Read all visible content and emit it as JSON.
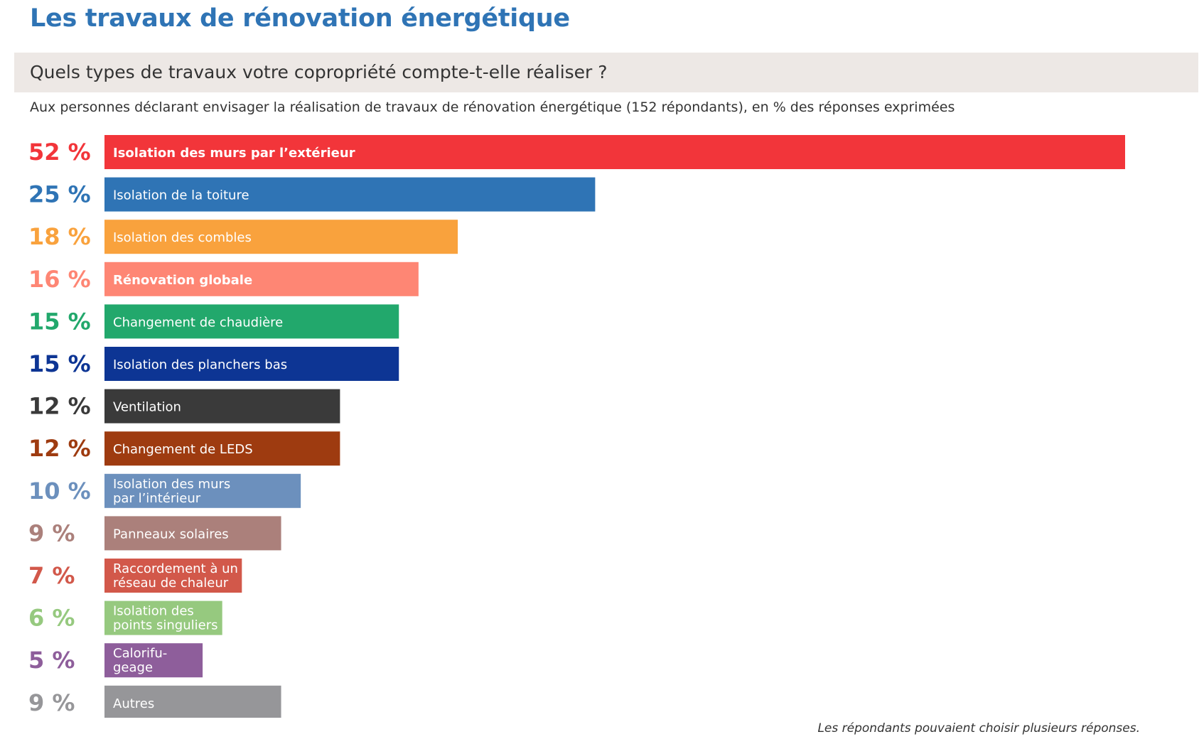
{
  "header": {
    "title": "Les travaux de rénovation énergétique",
    "question": "Quels types de travaux votre copropriété compte-t-elle réaliser ?",
    "subtitle": "Aux personnes déclarant envisager la réalisation de travaux de rénovation énergétique (152 répondants), en % des réponses exprimées"
  },
  "footnote": "Les répondants pouvaient choisir plusieurs réponses.",
  "chart_data": {
    "type": "bar",
    "orientation": "horizontal",
    "unit": "%",
    "value_max": 52,
    "categories": [
      "Isolation des murs par l’extérieur",
      "Isolation de la toiture",
      "Isolation des combles",
      "Rénovation globale",
      "Changement de chaudière",
      "Isolation des planchers bas",
      "Ventilation",
      "Changement de LEDS",
      "Isolation des murs par l’intérieur",
      "Panneaux solaires",
      "Raccordement à un réseau de chaleur",
      "Isolation des points singuliers",
      "Calorifu-geage",
      "Autres"
    ],
    "values": [
      52,
      25,
      18,
      16,
      15,
      15,
      12,
      12,
      10,
      9,
      7,
      6,
      5,
      9
    ],
    "value_labels": [
      "52 %",
      "25 %",
      "18 %",
      "16 %",
      "15 %",
      "15 %",
      "12 %",
      "12 %",
      "10 %",
      "9 %",
      "7 %",
      "6 %",
      "5 %",
      "9 %"
    ],
    "label_lines": [
      [
        "Isolation des murs par l’extérieur"
      ],
      [
        "Isolation de la toiture"
      ],
      [
        "Isolation des combles"
      ],
      [
        "Rénovation globale"
      ],
      [
        "Changement de chaudière"
      ],
      [
        "Isolation des planchers bas"
      ],
      [
        "Ventilation"
      ],
      [
        "Changement de LEDS"
      ],
      [
        "Isolation des murs",
        "par l’intérieur"
      ],
      [
        "Panneaux solaires"
      ],
      [
        "Raccordement à un",
        "réseau de chaleur"
      ],
      [
        "Isolation des",
        "points singuliers"
      ],
      [
        "Calorifu-",
        "geage"
      ],
      [
        "Autres"
      ]
    ],
    "bold_labels": [
      true,
      false,
      false,
      true,
      false,
      false,
      false,
      false,
      false,
      false,
      false,
      false,
      false,
      false
    ],
    "colors": [
      "#f2353a",
      "#2f74b5",
      "#f9a23d",
      "#fe8674",
      "#22a86c",
      "#0d3594",
      "#3a3a3a",
      "#9e3b10",
      "#6c90bd",
      "#ab807b",
      "#d2584a",
      "#96c97f",
      "#8e5e9b",
      "#969699"
    ],
    "grid": false,
    "legend": "none"
  }
}
